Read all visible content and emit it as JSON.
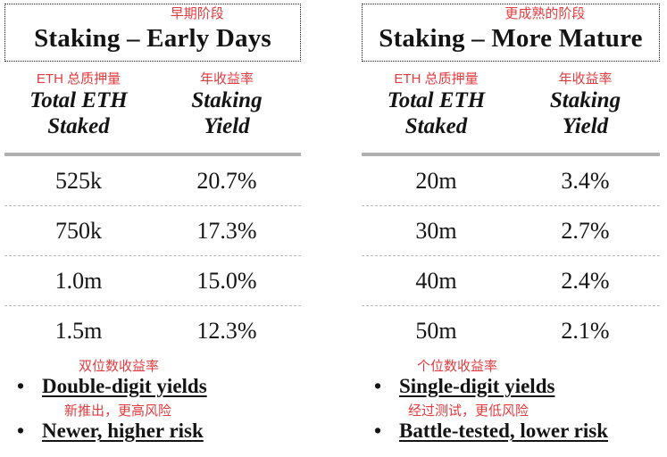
{
  "panels": [
    {
      "title_annotation": "早期阶段",
      "title": "Staking – Early Days",
      "columns": [
        {
          "annotation": "ETH 总质押量",
          "line1": "Total ETH",
          "line2": "Staked"
        },
        {
          "annotation": "年收益率",
          "line1": "Staking",
          "line2": "Yield"
        }
      ],
      "rows": [
        {
          "staked": "525k",
          "yield": "20.7%"
        },
        {
          "staked": "750k",
          "yield": "17.3%"
        },
        {
          "staked": "1.0m",
          "yield": "15.0%"
        },
        {
          "staked": "1.5m",
          "yield": "12.3%"
        }
      ],
      "bullets": [
        {
          "annotation": "双位数收益率",
          "text": "Double-digit yields"
        },
        {
          "annotation": "新推出，更高风险",
          "text": "Newer, higher risk"
        }
      ]
    },
    {
      "title_annotation": "更成熟的阶段",
      "title": "Staking – More Mature",
      "columns": [
        {
          "annotation": "ETH 总质押量",
          "line1": "Total ETH",
          "line2": "Staked"
        },
        {
          "annotation": "年收益率",
          "line1": "Staking",
          "line2": "Yield"
        }
      ],
      "rows": [
        {
          "staked": "20m",
          "yield": "3.4%"
        },
        {
          "staked": "30m",
          "yield": "2.7%"
        },
        {
          "staked": "40m",
          "yield": "2.4%"
        },
        {
          "staked": "50m",
          "yield": "2.1%"
        }
      ],
      "bullets": [
        {
          "annotation": "个位数收益率",
          "text": "Single-digit yields"
        },
        {
          "annotation": "经过测试，更低风险",
          "text": "Battle-tested, lower risk"
        }
      ]
    }
  ],
  "glyphs": {
    "bullet": "•"
  },
  "colors": {
    "annotation_red": "#e23b3f",
    "heavy_rule_gray": "#b0b0b0",
    "row_divider_gray": "#b8b8b8",
    "text_black": "#141414",
    "border_black": "#1a1a1a"
  }
}
